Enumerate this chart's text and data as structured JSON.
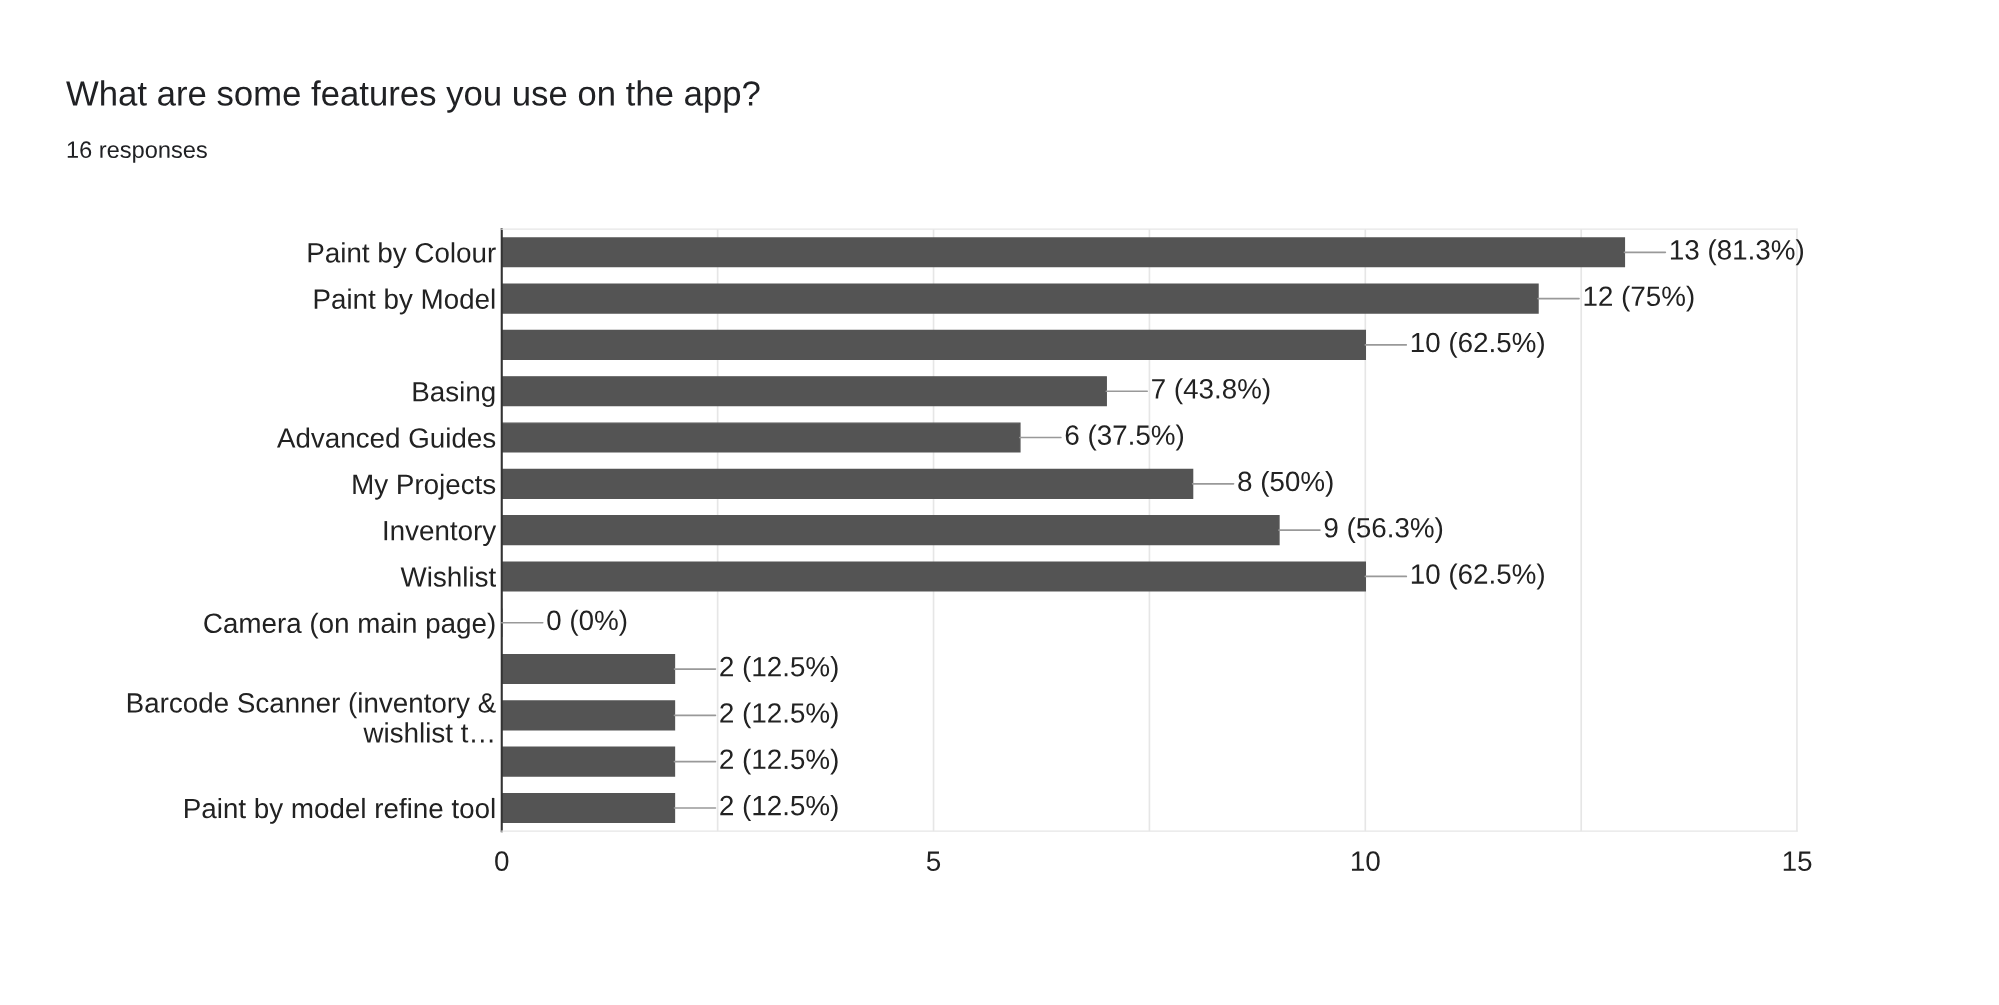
{
  "chart_data": {
    "type": "bar",
    "orientation": "horizontal",
    "title": "What are some features you use on the app?",
    "subtitle": "16 responses",
    "categories": [
      "Paint by Colour",
      "Paint by Model",
      null,
      "Basing",
      "Advanced Guides",
      "My Projects",
      "Inventory",
      "Wishlist",
      "Camera (on main page)",
      null,
      "Barcode Scanner (inventory &\nwishlist t…",
      null,
      "Paint by model refine tool"
    ],
    "values": [
      13,
      12,
      10,
      7,
      6,
      8,
      9,
      10,
      0,
      2,
      2,
      2,
      2
    ],
    "value_labels": [
      "13 (81.3%)",
      "12 (75%)",
      "10 (62.5%)",
      "7 (43.8%)",
      "6 (37.5%)",
      "8 (50%)",
      "9 (56.3%)",
      "10 (62.5%)",
      "0 (0%)",
      "2 (12.5%)",
      "2 (12.5%)",
      "2 (12.5%)",
      "2 (12.5%)"
    ],
    "color": "#545454",
    "xlim": [
      0,
      15
    ],
    "xticks": [
      0,
      {
        "value": 2.5,
        "label": null
      },
      5,
      {
        "value": 7.5,
        "label": null
      },
      10,
      {
        "value": 12.5,
        "label": null
      },
      15
    ],
    "grid": "x"
  }
}
